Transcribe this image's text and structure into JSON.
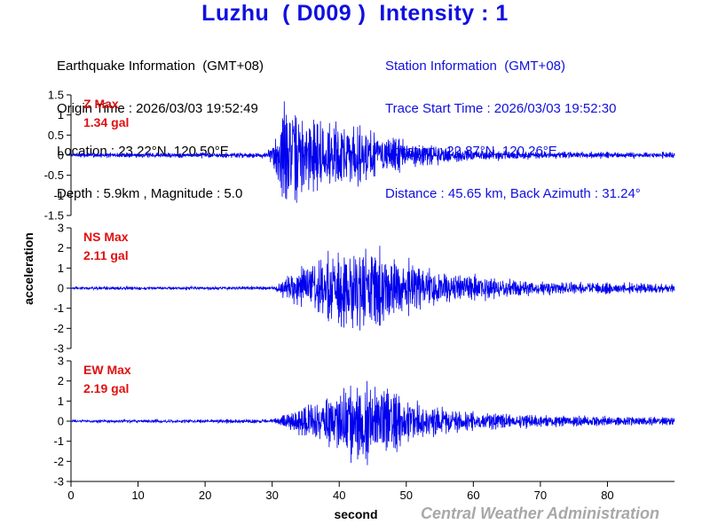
{
  "title": {
    "station": "Luzhu",
    "code": "( D009 )",
    "intensity": "Intensity : 1"
  },
  "earthquake_info": {
    "heading": "Earthquake Information  (GMT+08)",
    "origin_time": "Origin Time : 2026/03/03 19:52:49",
    "location": "Location : 23.22°N, 120.50°E",
    "depth_magnitude": "Depth : 5.9km , Magnitude : 5.0"
  },
  "station_info": {
    "heading": "Station Information  (GMT+08)",
    "trace_start": "Trace Start Time : 2026/03/03 19:52:30",
    "location": "Location : 22.87°N, 120.26°E",
    "distance": "Distance : 45.65 km, Back Azimuth : 31.24°"
  },
  "colors": {
    "trace": "#0000ee",
    "max_label": "#e01010",
    "title": "#1010e0",
    "credit": "#a8a8a8"
  },
  "credit": "Central Weather Administration",
  "chart_data": {
    "type": "line",
    "xlabel": "second",
    "ylabel": "acceleration",
    "x_range": [
      0,
      90
    ],
    "x_ticks": [
      0,
      10,
      20,
      30,
      40,
      50,
      60,
      70,
      80
    ],
    "sample_rate_hz": 20,
    "series": [
      {
        "name": "Z",
        "max_title": "Z Max",
        "max_value": "1.34 gal",
        "peak": 1.34,
        "ylim": [
          -1.5,
          1.5
        ],
        "y_ticks": [
          1.5,
          1,
          0.5,
          0,
          -0.5,
          -1,
          -1.5
        ],
        "y_tick_labels": [
          "1.5",
          "1",
          "0.5",
          "0",
          "-0.5",
          "-1",
          "-1.5"
        ],
        "noise": 0.02,
        "envelope": [
          [
            0,
            0.03
          ],
          [
            29,
            0.04
          ],
          [
            30,
            0.2
          ],
          [
            31,
            0.6
          ],
          [
            32,
            1.0
          ],
          [
            33,
            0.85
          ],
          [
            35,
            0.7
          ],
          [
            38,
            0.6
          ],
          [
            42,
            0.55
          ],
          [
            45,
            0.45
          ],
          [
            48,
            0.3
          ],
          [
            52,
            0.2
          ],
          [
            60,
            0.1
          ],
          [
            70,
            0.06
          ],
          [
            80,
            0.05
          ],
          [
            90,
            0.04
          ]
        ],
        "seed": 7
      },
      {
        "name": "NS",
        "max_title": "NS Max",
        "max_value": "2.11 gal",
        "peak": 2.11,
        "ylim": [
          -3,
          3
        ],
        "y_ticks": [
          3,
          2,
          1,
          0,
          -1,
          -2,
          -3
        ],
        "y_tick_labels": [
          "3",
          "2",
          "1",
          "0",
          "-1",
          "-2",
          "-3"
        ],
        "noise": 0.02,
        "envelope": [
          [
            0,
            0.02
          ],
          [
            30,
            0.03
          ],
          [
            32,
            0.25
          ],
          [
            36,
            0.6
          ],
          [
            40,
            0.9
          ],
          [
            43,
            1.0
          ],
          [
            46,
            0.85
          ],
          [
            50,
            0.6
          ],
          [
            55,
            0.35
          ],
          [
            60,
            0.3
          ],
          [
            70,
            0.15
          ],
          [
            80,
            0.12
          ],
          [
            90,
            0.1
          ]
        ],
        "seed": 19
      },
      {
        "name": "EW",
        "max_title": "EW Max",
        "max_value": "2.19 gal",
        "peak": 2.19,
        "ylim": [
          -3,
          3
        ],
        "y_ticks": [
          3,
          2,
          1,
          0,
          -1,
          -2,
          -3
        ],
        "y_tick_labels": [
          "3",
          "2",
          "1",
          "0",
          "-1",
          "-2",
          "-3"
        ],
        "noise": 0.02,
        "envelope": [
          [
            0,
            0.02
          ],
          [
            30,
            0.04
          ],
          [
            32,
            0.2
          ],
          [
            35,
            0.4
          ],
          [
            38,
            0.6
          ],
          [
            41,
            0.9
          ],
          [
            44,
            1.0
          ],
          [
            47,
            0.85
          ],
          [
            50,
            0.55
          ],
          [
            55,
            0.35
          ],
          [
            60,
            0.25
          ],
          [
            70,
            0.15
          ],
          [
            80,
            0.12
          ],
          [
            90,
            0.1
          ]
        ],
        "seed": 31
      }
    ]
  }
}
